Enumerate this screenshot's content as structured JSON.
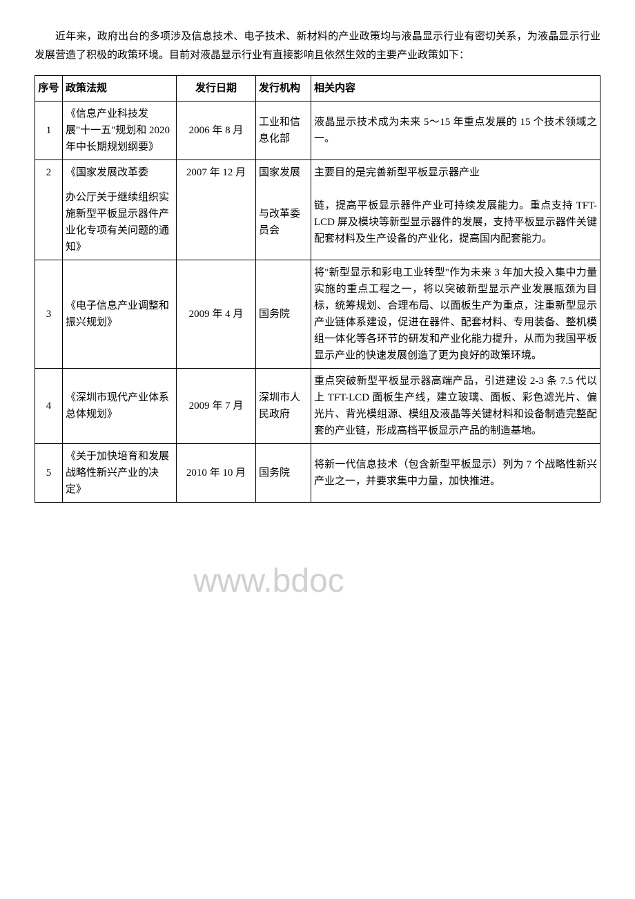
{
  "intro": "近年来，政府出台的多项涉及信息技术、电子技术、新材料的产业政策均与液晶显示行业有密切关系，为液晶显示行业发展营造了积极的政策环境。目前对液晶显示行业有直接影响且依然生效的主要产业政策如下：",
  "watermark": "www.bdoc",
  "headers": {
    "num": "序号",
    "policy": "政策法规",
    "date": "发行日期",
    "org": "发行机构",
    "content": "相关内容"
  },
  "rows": [
    {
      "num": "1",
      "policy": "《信息产业科技发展\"十一五\"规划和 2020 年中长期规划纲要》",
      "date": "2006 年 8 月",
      "org": "工业和信息化部",
      "content": "液晶显示技术成为未来 5～15 年重点发展的 15 个技术领域之一。"
    },
    {
      "num": "2",
      "policy_a": "《国家发展改革委",
      "policy_b": "办公厅关于继续组织实施新型平板显示器件产业化专项有关问题的通知》",
      "date": "2007 年 12 月",
      "org_a": "国家发展",
      "org_b": "与改革委员会",
      "content_a": "主要目的是完善新型平板显示器产业",
      "content_b": "链，提高平板显示器件产业可持续发展能力。重点支持 TFT-LCD 屏及模块等新型显示器件的发展，支持平板显示器件关键配套材料及生产设备的产业化，提高国内配套能力。"
    },
    {
      "num": "3",
      "policy": "《电子信息产业调整和振兴规划》",
      "date": "2009 年 4 月",
      "org": "国务院",
      "content": "将\"新型显示和彩电工业转型\"作为未来 3 年加大投入集中力量实施的重点工程之一，将以突破新型显示产业发展瓶颈为目标，统筹规划、合理布局、以面板生产为重点，注重新型显示产业链体系建设，促进在器件、配套材料、专用装备、整机模组一体化等各环节的研发和产业化能力提升，从而为我国平板显示产业的快速发展创造了更为良好的政策环境。"
    },
    {
      "num": "4",
      "policy": "《深圳市现代产业体系总体规划》",
      "date": "2009 年 7 月",
      "org": "深圳市人民政府",
      "content": "重点突破新型平板显示器高端产品，引进建设 2-3 条 7.5 代以上 TFT-LCD 面板生产线，建立玻璃、面板、彩色滤光片、偏光片、背光模组源、模组及液晶等关键材料和设备制造完整配套的产业链，形成高档平板显示产品的制造基地。"
    },
    {
      "num": "5",
      "policy": "《关于加快培育和发展战略性新兴产业的决定》",
      "date": "2010 年 10 月",
      "org": "国务院",
      "content": "将新一代信息技术（包含新型平板显示）列为 7 个战略性新兴产业之一，并要求集中力量，加快推进。"
    }
  ]
}
